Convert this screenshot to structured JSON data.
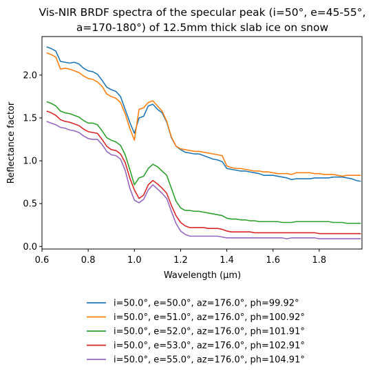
{
  "chart_data": {
    "type": "line",
    "title": [
      "Vis-NIR BRDF spectra of the specular peak (i=50°, e=45-55°,",
      "a=170-180°) of 12.5mm thick slab ice on snow"
    ],
    "xlabel": "Wavelength (μm)",
    "ylabel": "Reflectance factor",
    "xlim": [
      0.6,
      1.985
    ],
    "ylim": [
      -0.03,
      2.45
    ],
    "xticks": [
      0.6,
      0.8,
      1.0,
      1.2,
      1.4,
      1.6,
      1.8
    ],
    "xtick_labels": [
      "0.6",
      "0.8",
      "1.0",
      "1.2",
      "1.4",
      "1.6",
      "1.8"
    ],
    "yticks": [
      0.0,
      0.5,
      1.0,
      1.5,
      2.0
    ],
    "ytick_labels": [
      "0.0",
      "0.5",
      "1.0",
      "1.5",
      "2.0"
    ],
    "grid": false,
    "legend_placement": "below plot, centered",
    "x": [
      0.62,
      0.64,
      0.66,
      0.68,
      0.7,
      0.72,
      0.74,
      0.76,
      0.78,
      0.8,
      0.82,
      0.84,
      0.86,
      0.88,
      0.9,
      0.92,
      0.94,
      0.96,
      0.98,
      1.0,
      1.02,
      1.04,
      1.06,
      1.08,
      1.1,
      1.12,
      1.14,
      1.16,
      1.18,
      1.2,
      1.22,
      1.24,
      1.26,
      1.28,
      1.3,
      1.32,
      1.34,
      1.36,
      1.38,
      1.4,
      1.42,
      1.44,
      1.46,
      1.48,
      1.5,
      1.52,
      1.54,
      1.56,
      1.58,
      1.6,
      1.62,
      1.64,
      1.66,
      1.68,
      1.7,
      1.72,
      1.74,
      1.76,
      1.78,
      1.8,
      1.82,
      1.84,
      1.86,
      1.88,
      1.9,
      1.92,
      1.94,
      1.96,
      1.98
    ],
    "series": [
      {
        "name": "i=50.0°, e=50.0°, az=176.0°, ph=99.92°",
        "color": "#1f77b4",
        "values": [
          2.33,
          2.31,
          2.28,
          2.16,
          2.15,
          2.14,
          2.15,
          2.13,
          2.08,
          2.05,
          2.04,
          2.01,
          1.94,
          1.86,
          1.83,
          1.81,
          1.75,
          1.6,
          1.45,
          1.32,
          1.5,
          1.52,
          1.64,
          1.66,
          1.6,
          1.56,
          1.45,
          1.27,
          1.17,
          1.13,
          1.1,
          1.09,
          1.08,
          1.08,
          1.06,
          1.04,
          1.02,
          1.01,
          0.99,
          0.91,
          0.9,
          0.89,
          0.88,
          0.88,
          0.87,
          0.86,
          0.85,
          0.83,
          0.83,
          0.83,
          0.82,
          0.81,
          0.8,
          0.78,
          0.79,
          0.79,
          0.79,
          0.79,
          0.8,
          0.8,
          0.8,
          0.8,
          0.81,
          0.81,
          0.81,
          0.8,
          0.79,
          0.77,
          0.76
        ]
      },
      {
        "name": "i=50.0°, e=51.0°, az=176.0°, ph=100.92°",
        "color": "#ff7f0e",
        "values": [
          2.26,
          2.24,
          2.21,
          2.07,
          2.08,
          2.07,
          2.05,
          2.03,
          1.99,
          1.96,
          1.95,
          1.92,
          1.87,
          1.78,
          1.75,
          1.73,
          1.68,
          1.55,
          1.38,
          1.24,
          1.6,
          1.62,
          1.68,
          1.7,
          1.64,
          1.58,
          1.46,
          1.28,
          1.17,
          1.14,
          1.13,
          1.12,
          1.11,
          1.11,
          1.1,
          1.09,
          1.08,
          1.07,
          1.06,
          0.94,
          0.92,
          0.91,
          0.91,
          0.9,
          0.89,
          0.88,
          0.88,
          0.87,
          0.87,
          0.86,
          0.85,
          0.85,
          0.85,
          0.84,
          0.86,
          0.86,
          0.86,
          0.86,
          0.85,
          0.85,
          0.84,
          0.84,
          0.84,
          0.83,
          0.82,
          0.83,
          0.83,
          0.83,
          0.83
        ]
      },
      {
        "name": "i=50.0°, e=52.0°, az=176.0°, ph=101.91°",
        "color": "#2ca02c",
        "values": [
          1.69,
          1.67,
          1.64,
          1.58,
          1.56,
          1.55,
          1.53,
          1.51,
          1.47,
          1.44,
          1.44,
          1.42,
          1.35,
          1.27,
          1.24,
          1.22,
          1.18,
          1.07,
          0.9,
          0.72,
          0.8,
          0.82,
          0.91,
          0.96,
          0.93,
          0.88,
          0.83,
          0.68,
          0.53,
          0.45,
          0.42,
          0.42,
          0.41,
          0.41,
          0.4,
          0.39,
          0.38,
          0.37,
          0.36,
          0.33,
          0.32,
          0.32,
          0.31,
          0.31,
          0.3,
          0.3,
          0.29,
          0.29,
          0.29,
          0.29,
          0.29,
          0.28,
          0.28,
          0.28,
          0.29,
          0.29,
          0.29,
          0.29,
          0.29,
          0.29,
          0.29,
          0.29,
          0.28,
          0.28,
          0.28,
          0.27,
          0.27,
          0.27,
          0.27
        ]
      },
      {
        "name": "i=50.0°, e=53.0°, az=176.0°, ph=102.91°",
        "color": "#d62728",
        "values": [
          1.58,
          1.56,
          1.53,
          1.48,
          1.46,
          1.45,
          1.43,
          1.41,
          1.37,
          1.34,
          1.33,
          1.32,
          1.25,
          1.17,
          1.13,
          1.12,
          1.08,
          0.98,
          0.8,
          0.66,
          0.56,
          0.6,
          0.72,
          0.77,
          0.73,
          0.68,
          0.62,
          0.48,
          0.36,
          0.28,
          0.24,
          0.22,
          0.22,
          0.22,
          0.22,
          0.21,
          0.21,
          0.21,
          0.2,
          0.18,
          0.17,
          0.17,
          0.17,
          0.17,
          0.17,
          0.16,
          0.16,
          0.16,
          0.16,
          0.16,
          0.16,
          0.16,
          0.16,
          0.16,
          0.16,
          0.16,
          0.16,
          0.16,
          0.16,
          0.15,
          0.15,
          0.15,
          0.15,
          0.15,
          0.15,
          0.15,
          0.15,
          0.15,
          0.15
        ]
      },
      {
        "name": "i=50.0°, e=55.0°, az=176.0°, ph=104.91°",
        "color": "#9467bd",
        "values": [
          1.46,
          1.44,
          1.42,
          1.39,
          1.38,
          1.36,
          1.35,
          1.33,
          1.29,
          1.26,
          1.25,
          1.25,
          1.19,
          1.11,
          1.07,
          1.06,
          1.02,
          0.89,
          0.68,
          0.54,
          0.51,
          0.55,
          0.66,
          0.72,
          0.67,
          0.62,
          0.56,
          0.41,
          0.27,
          0.18,
          0.14,
          0.12,
          0.12,
          0.12,
          0.12,
          0.12,
          0.12,
          0.12,
          0.11,
          0.1,
          0.1,
          0.1,
          0.1,
          0.1,
          0.1,
          0.1,
          0.1,
          0.1,
          0.1,
          0.1,
          0.1,
          0.1,
          0.09,
          0.1,
          0.1,
          0.1,
          0.1,
          0.1,
          0.1,
          0.09,
          0.09,
          0.09,
          0.09,
          0.09,
          0.09,
          0.09,
          0.09,
          0.09,
          0.09
        ]
      }
    ]
  }
}
